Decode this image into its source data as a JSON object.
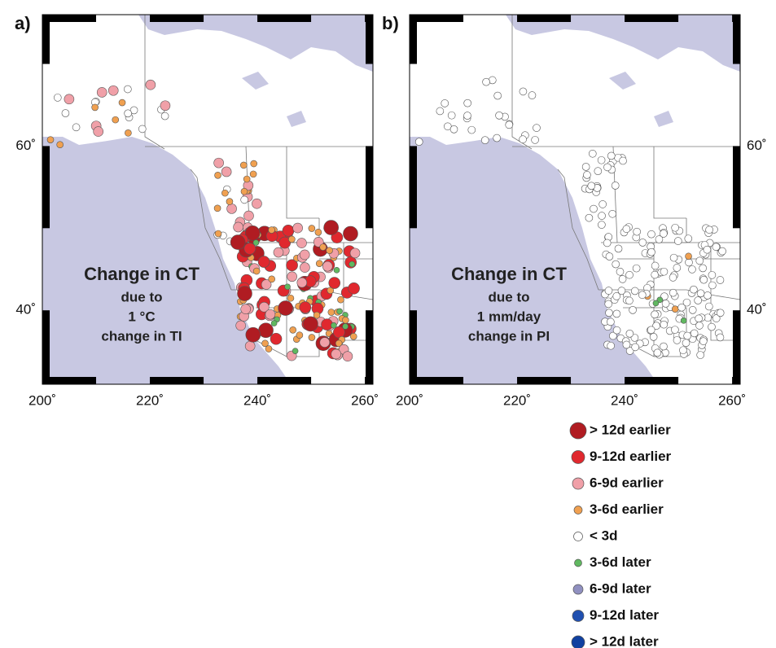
{
  "map": {
    "xlim": [
      200,
      261.5
    ],
    "ylim": [
      31,
      76
    ],
    "xticks": [
      {
        "value": 200,
        "label": "200˚"
      },
      {
        "value": 220,
        "label": "220˚"
      },
      {
        "value": 240,
        "label": "240˚"
      },
      {
        "value": 260,
        "label": "260˚"
      }
    ],
    "yticks": [
      {
        "value": 60,
        "label": "60˚"
      },
      {
        "value": 40,
        "label": "40˚"
      }
    ]
  },
  "panels": [
    {
      "label": "a)",
      "annotation": [
        "Change in CT",
        "due to",
        "1 °C",
        "change in TI"
      ]
    },
    {
      "label": "b)",
      "annotation": [
        "Change in CT",
        "due to",
        "1 mm/day",
        "change in PI"
      ]
    }
  ],
  "legend": [
    {
      "label": "> 12d earlier",
      "color": "#b01c22"
    },
    {
      "label": "9-12d earlier",
      "color": "#e0282e"
    },
    {
      "label": "6-9d earlier",
      "color": "#f0a0a8"
    },
    {
      "label": "3-6d earlier",
      "color": "#f0a050"
    },
    {
      "label": "< 3d",
      "color": "#ffffff"
    },
    {
      "label": "3-6d later",
      "color": "#60b860"
    },
    {
      "label": "6-9d later",
      "color": "#9090c0"
    },
    {
      "label": "9-12d later",
      "color": "#2050b0"
    },
    {
      "label": "> 12d later",
      "color": "#1040a0"
    }
  ]
}
